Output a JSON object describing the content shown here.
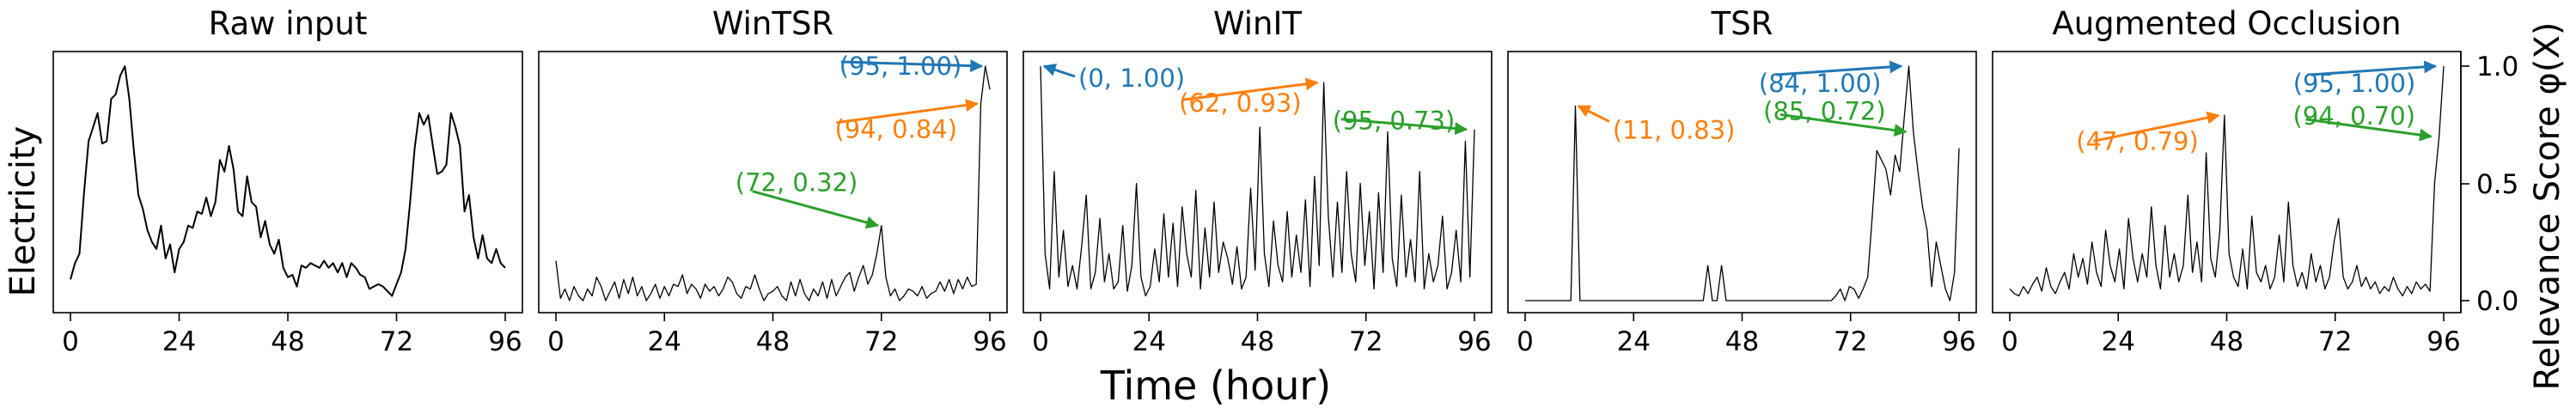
{
  "figure": {
    "ylabel_left": "Electricity",
    "xlabel": "Time (hour)",
    "ylabel_right": "Relevance Score φ(X)",
    "right_ticks": [
      "0.0",
      "0.5",
      "1.0"
    ],
    "x_ticks": [
      "0",
      "24",
      "48",
      "72",
      "96"
    ]
  },
  "colors": {
    "blue": "#1f77b4",
    "orange": "#ff7f0e",
    "green": "#2ca02c",
    "line": "#000000"
  },
  "chart_data": [
    {
      "type": "line",
      "title": "Raw input",
      "x_range": [
        0,
        96
      ],
      "x_ticks": [
        0,
        24,
        48,
        72,
        96
      ],
      "y_range": [
        0,
        1
      ],
      "annotations": [],
      "values": [
        0.09,
        0.16,
        0.2,
        0.46,
        0.68,
        0.74,
        0.8,
        0.67,
        0.68,
        0.86,
        0.88,
        0.96,
        1.0,
        0.86,
        0.64,
        0.45,
        0.39,
        0.3,
        0.25,
        0.22,
        0.32,
        0.18,
        0.24,
        0.12,
        0.22,
        0.25,
        0.32,
        0.31,
        0.38,
        0.37,
        0.44,
        0.36,
        0.42,
        0.6,
        0.55,
        0.66,
        0.56,
        0.38,
        0.36,
        0.53,
        0.42,
        0.4,
        0.27,
        0.34,
        0.24,
        0.2,
        0.26,
        0.14,
        0.1,
        0.11,
        0.06,
        0.15,
        0.14,
        0.16,
        0.15,
        0.14,
        0.17,
        0.14,
        0.16,
        0.12,
        0.16,
        0.1,
        0.16,
        0.14,
        0.11,
        0.1,
        0.05,
        0.06,
        0.07,
        0.06,
        0.04,
        0.02,
        0.07,
        0.12,
        0.22,
        0.42,
        0.65,
        0.8,
        0.75,
        0.79,
        0.66,
        0.54,
        0.55,
        0.58,
        0.8,
        0.74,
        0.66,
        0.38,
        0.45,
        0.27,
        0.18,
        0.28,
        0.18,
        0.16,
        0.22,
        0.16,
        0.14
      ]
    },
    {
      "type": "line",
      "title": "WinTSR",
      "x_range": [
        0,
        96
      ],
      "x_ticks": [
        0,
        24,
        48,
        72,
        96
      ],
      "y_range": [
        0,
        1
      ],
      "annotations": [
        {
          "label": "(95, 1.00)",
          "x": 95,
          "y": 1.0,
          "color": "blue"
        },
        {
          "label": "(94, 0.84)",
          "x": 94,
          "y": 0.84,
          "color": "orange"
        },
        {
          "label": "(72, 0.32)",
          "x": 72,
          "y": 0.32,
          "color": "green"
        }
      ],
      "values": [
        0.17,
        0.01,
        0.05,
        0.0,
        0.06,
        0.02,
        0.0,
        0.05,
        0.02,
        0.1,
        0.06,
        0.0,
        0.04,
        0.08,
        0.01,
        0.09,
        0.03,
        0.1,
        0.02,
        0.06,
        0.0,
        0.03,
        0.07,
        0.01,
        0.06,
        0.02,
        0.07,
        0.06,
        0.11,
        0.03,
        0.07,
        0.05,
        0.01,
        0.07,
        0.04,
        0.06,
        0.02,
        0.05,
        0.1,
        0.08,
        0.03,
        0.01,
        0.06,
        0.05,
        0.11,
        0.05,
        0.0,
        0.03,
        0.04,
        0.06,
        0.02,
        0.0,
        0.08,
        0.02,
        0.09,
        0.03,
        0.0,
        0.05,
        0.02,
        0.08,
        0.01,
        0.09,
        0.02,
        0.06,
        0.1,
        0.12,
        0.04,
        0.1,
        0.15,
        0.07,
        0.11,
        0.2,
        0.32,
        0.1,
        0.02,
        0.05,
        0.0,
        0.02,
        0.05,
        0.04,
        0.02,
        0.06,
        0.01,
        0.03,
        0.04,
        0.08,
        0.04,
        0.09,
        0.03,
        0.09,
        0.05,
        0.1,
        0.06,
        0.07,
        0.84,
        1.0,
        0.9
      ]
    },
    {
      "type": "line",
      "title": "WinIT",
      "x_range": [
        0,
        96
      ],
      "x_ticks": [
        0,
        24,
        48,
        72,
        96
      ],
      "y_range": [
        0,
        1
      ],
      "annotations": [
        {
          "label": "(0, 1.00)",
          "x": 0,
          "y": 1.0,
          "color": "blue"
        },
        {
          "label": "(62, 0.93)",
          "x": 62,
          "y": 0.93,
          "color": "orange"
        },
        {
          "label": "(95, 0.73)",
          "x": 95,
          "y": 0.73,
          "color": "green"
        }
      ],
      "values": [
        1.0,
        0.2,
        0.05,
        0.55,
        0.1,
        0.3,
        0.06,
        0.15,
        0.05,
        0.23,
        0.45,
        0.05,
        0.12,
        0.35,
        0.08,
        0.2,
        0.05,
        0.08,
        0.32,
        0.04,
        0.15,
        0.5,
        0.1,
        0.02,
        0.06,
        0.22,
        0.08,
        0.37,
        0.1,
        0.33,
        0.06,
        0.4,
        0.2,
        0.1,
        0.47,
        0.05,
        0.31,
        0.1,
        0.42,
        0.12,
        0.25,
        0.18,
        0.07,
        0.23,
        0.05,
        0.1,
        0.48,
        0.13,
        0.74,
        0.2,
        0.06,
        0.34,
        0.15,
        0.08,
        0.38,
        0.1,
        0.28,
        0.12,
        0.43,
        0.06,
        0.53,
        0.15,
        0.93,
        0.36,
        0.1,
        0.42,
        0.12,
        0.55,
        0.2,
        0.08,
        0.5,
        0.15,
        0.38,
        0.05,
        0.46,
        0.12,
        0.72,
        0.18,
        0.06,
        0.45,
        0.1,
        0.26,
        0.08,
        0.55,
        0.05,
        0.2,
        0.08,
        0.15,
        0.36,
        0.05,
        0.12,
        0.3,
        0.08,
        0.68,
        0.1,
        0.73
      ]
    },
    {
      "type": "line",
      "title": "TSR",
      "x_range": [
        0,
        96
      ],
      "x_ticks": [
        0,
        24,
        48,
        72,
        96
      ],
      "y_range": [
        0,
        1
      ],
      "annotations": [
        {
          "label": "(84, 1.00)",
          "x": 84,
          "y": 1.0,
          "color": "blue"
        },
        {
          "label": "(11, 0.83)",
          "x": 11,
          "y": 0.83,
          "color": "orange"
        },
        {
          "label": "(85, 0.72)",
          "x": 85,
          "y": 0.72,
          "color": "green"
        }
      ],
      "values": [
        0,
        0,
        0,
        0,
        0,
        0,
        0,
        0,
        0,
        0,
        0,
        0.83,
        0,
        0,
        0,
        0,
        0,
        0,
        0,
        0,
        0,
        0,
        0,
        0,
        0,
        0,
        0,
        0,
        0,
        0,
        0,
        0,
        0,
        0,
        0,
        0,
        0,
        0,
        0,
        0,
        0.15,
        0,
        0,
        0.15,
        0,
        0,
        0,
        0,
        0,
        0,
        0,
        0,
        0,
        0,
        0,
        0,
        0,
        0,
        0,
        0,
        0,
        0,
        0,
        0,
        0,
        0,
        0,
        0,
        0.02,
        0.05,
        0,
        0.06,
        0.05,
        0.01,
        0.05,
        0.1,
        0.36,
        0.64,
        0.6,
        0.56,
        0.45,
        0.62,
        0.55,
        0.78,
        1.0,
        0.72,
        0.55,
        0.4,
        0.3,
        0.06,
        0.25,
        0.15,
        0.05,
        0.0,
        0.12,
        0.65
      ]
    },
    {
      "type": "line",
      "title": "Augmented Occlusion",
      "x_range": [
        0,
        96
      ],
      "x_ticks": [
        0,
        24,
        48,
        72,
        96
      ],
      "y_range": [
        0,
        1
      ],
      "annotations": [
        {
          "label": "(95, 1.00)",
          "x": 95,
          "y": 1.0,
          "color": "blue"
        },
        {
          "label": "(47, 0.79)",
          "x": 47,
          "y": 0.79,
          "color": "orange"
        },
        {
          "label": "(94, 0.70)",
          "x": 94,
          "y": 0.7,
          "color": "green"
        }
      ],
      "values": [
        0.05,
        0.03,
        0.02,
        0.06,
        0.03,
        0.07,
        0.1,
        0.04,
        0.14,
        0.06,
        0.03,
        0.08,
        0.12,
        0.05,
        0.2,
        0.1,
        0.18,
        0.07,
        0.25,
        0.12,
        0.06,
        0.3,
        0.15,
        0.08,
        0.22,
        0.05,
        0.35,
        0.18,
        0.08,
        0.2,
        0.1,
        0.4,
        0.15,
        0.05,
        0.32,
        0.1,
        0.2,
        0.08,
        0.15,
        0.45,
        0.12,
        0.25,
        0.08,
        0.63,
        0.18,
        0.1,
        0.3,
        0.79,
        0.2,
        0.1,
        0.06,
        0.22,
        0.05,
        0.36,
        0.12,
        0.08,
        0.15,
        0.05,
        0.1,
        0.28,
        0.08,
        0.42,
        0.15,
        0.06,
        0.12,
        0.05,
        0.2,
        0.08,
        0.15,
        0.05,
        0.1,
        0.25,
        0.35,
        0.1,
        0.05,
        0.08,
        0.15,
        0.06,
        0.1,
        0.05,
        0.08,
        0.03,
        0.06,
        0.04,
        0.1,
        0.05,
        0.02,
        0.06,
        0.03,
        0.08,
        0.05,
        0.07,
        0.04,
        0.5,
        0.7,
        1.0
      ]
    }
  ]
}
